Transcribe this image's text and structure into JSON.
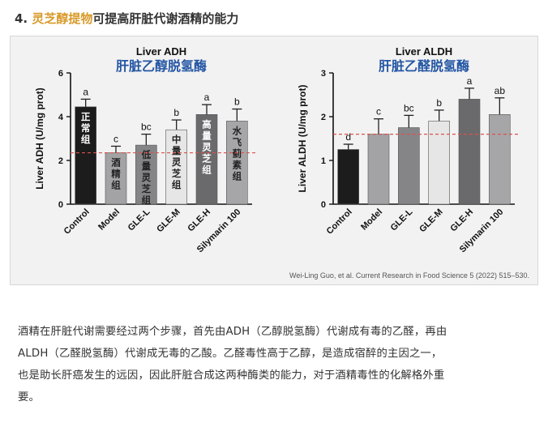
{
  "heading": {
    "number": "4.",
    "highlight": "灵芝醇提物",
    "rest": "可提高肝脏代谢酒精的能力"
  },
  "citation": "Wei-Ling Guo, et al. Current Research in Food Science 5 (2022) 515–530.",
  "paragraph": [
    "酒精在肝脏代谢需要经过两个步骤，首先由ADH（乙醇脱氢酶）代谢成有毒的乙醛，再由",
    "ALDH（乙醛脱氢酶）代谢成无毒的乙酸。乙醛毒性高于乙醇，是造成宿醉的主因之一，",
    "也是助长肝癌发生的远因，因此肝脏合成这两种酶类的能力，对于酒精毒性的化解格外重",
    "要。"
  ],
  "chart_data": [
    {
      "type": "bar",
      "title": "Liver ADH",
      "subtitle": "肝脏乙醇脱氢酶",
      "ylabel": "Liver ADH (U/mg prot)",
      "xlabel": "",
      "ylim": [
        0,
        6
      ],
      "yticks": [
        "0",
        "2",
        "4",
        "6"
      ],
      "reference_line": 2.35,
      "categories": [
        "Control",
        "Model",
        "GLE-L",
        "GLE-M",
        "GLE-H",
        "Silymarin 100"
      ],
      "values": [
        4.45,
        2.35,
        2.7,
        3.4,
        4.1,
        3.8
      ],
      "errors": [
        0.35,
        0.3,
        0.5,
        0.45,
        0.45,
        0.55
      ],
      "significance": [
        "a",
        "c",
        "bc",
        "b",
        "a",
        "b"
      ],
      "bar_labels": [
        "正常组",
        "酒精组",
        "低量灵芝组",
        "中量灵芝组",
        "高量灵芝组",
        "水飞蓟素组"
      ],
      "bar_colors": [
        "#1c1c1c",
        "#a3a3a5",
        "#858588",
        "#e6e6e6",
        "#6a6a6c",
        "#a6a6a8"
      ]
    },
    {
      "type": "bar",
      "title": "Liver ALDH",
      "subtitle": "肝脏乙醛脱氢酶",
      "ylabel": "Liver ALDH (U/mg prot)",
      "xlabel": "",
      "ylim": [
        0,
        3
      ],
      "yticks": [
        "0",
        "1",
        "2",
        "3"
      ],
      "reference_line": 1.6,
      "categories": [
        "Control",
        "Model",
        "GLE-L",
        "GLE-M",
        "GLE-H",
        "Silymarin 100"
      ],
      "values": [
        1.25,
        1.6,
        1.75,
        1.9,
        2.4,
        2.05
      ],
      "errors": [
        0.12,
        0.35,
        0.28,
        0.25,
        0.25,
        0.38
      ],
      "significance": [
        "d",
        "c",
        "bc",
        "b",
        "a",
        "ab"
      ],
      "bar_colors": [
        "#1c1c1c",
        "#a3a3a5",
        "#858588",
        "#e6e6e6",
        "#6a6a6c",
        "#a6a6a8"
      ]
    }
  ]
}
